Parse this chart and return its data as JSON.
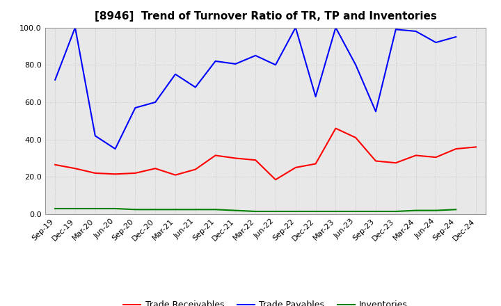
{
  "title": "[8946]  Trend of Turnover Ratio of TR, TP and Inventories",
  "x_labels": [
    "Sep-19",
    "Dec-19",
    "Mar-20",
    "Jun-20",
    "Sep-20",
    "Dec-20",
    "Mar-21",
    "Jun-21",
    "Sep-21",
    "Dec-21",
    "Mar-22",
    "Jun-22",
    "Sep-22",
    "Dec-22",
    "Mar-23",
    "Jun-23",
    "Sep-23",
    "Dec-23",
    "Mar-24",
    "Jun-24",
    "Sep-24",
    "Dec-24"
  ],
  "trade_receivables": [
    26.5,
    24.5,
    22.0,
    21.5,
    22.0,
    24.5,
    21.0,
    24.0,
    31.5,
    30.0,
    29.0,
    18.5,
    25.0,
    27.0,
    46.0,
    41.0,
    28.5,
    27.5,
    31.5,
    30.5,
    35.0,
    36.0
  ],
  "trade_payables": [
    72.0,
    100.0,
    42.0,
    35.0,
    57.0,
    60.0,
    75.0,
    68.0,
    82.0,
    80.5,
    85.0,
    80.0,
    100.0,
    63.0,
    100.0,
    80.0,
    55.0,
    99.0,
    98.0,
    92.0,
    95.0,
    null
  ],
  "inventories": [
    3.0,
    3.0,
    3.0,
    3.0,
    2.5,
    2.5,
    2.5,
    2.5,
    2.5,
    2.0,
    1.5,
    1.5,
    1.5,
    1.5,
    1.5,
    1.5,
    1.5,
    1.5,
    2.0,
    2.0,
    2.5,
    null
  ],
  "ylim": [
    0.0,
    100.0
  ],
  "yticks": [
    0.0,
    20.0,
    40.0,
    60.0,
    80.0,
    100.0
  ],
  "tr_color": "#ff0000",
  "tp_color": "#0000ff",
  "inv_color": "#008000",
  "bg_color": "#ffffff",
  "plot_bg_color": "#e8e8e8",
  "grid_color": "#bbbbbb",
  "title_fontsize": 11,
  "legend_fontsize": 9,
  "tick_fontsize": 8
}
